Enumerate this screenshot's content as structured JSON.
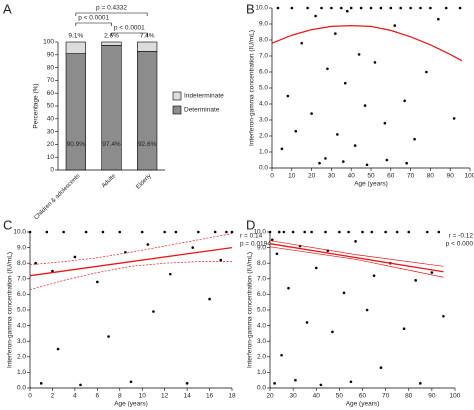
{
  "chart_data": [
    {
      "type": "bar",
      "label": "A",
      "ylabel": "Percentage (%)",
      "categories": [
        "Children & adolescents",
        "Adults",
        "Elderly"
      ],
      "series": [
        {
          "name": "Determinate",
          "color": "#8c8c8c",
          "values": [
            90.9,
            97.4,
            92.6
          ],
          "value_labels": [
            "90.9%",
            "97.4%",
            "92.6%"
          ]
        },
        {
          "name": "Indeterminate",
          "color": "#dcdcdc",
          "values": [
            9.1,
            2.6,
            7.4
          ],
          "value_labels": [
            "9.1%",
            "2.6%",
            "7.4%"
          ]
        }
      ],
      "stacked": true,
      "legend": "right",
      "ylim": [
        0,
        100
      ],
      "yticks": [
        0,
        10,
        20,
        30,
        40,
        50,
        60,
        70,
        80,
        90,
        100
      ],
      "comparisons": [
        {
          "label": "p = 0.4332",
          "groups": [
            0,
            2
          ]
        },
        {
          "label": "p < 0.0001",
          "groups": [
            0,
            1
          ]
        },
        {
          "label": "p < 0.0001",
          "groups": [
            1,
            2
          ]
        }
      ]
    },
    {
      "type": "scatter",
      "label": "B",
      "xlabel": "Age (years)",
      "ylabel": "Interferon-gamma concentration (IU/mL)",
      "xlim": [
        0,
        100
      ],
      "xticks": [
        0,
        10,
        20,
        30,
        40,
        50,
        60,
        70,
        80,
        90,
        100
      ],
      "ylim": [
        0,
        10
      ],
      "yticks": [
        {
          "value": 0,
          "label": "0.0"
        },
        {
          "value": 1,
          "label": "1.0"
        },
        {
          "value": 2,
          "label": "2.0"
        },
        {
          "value": 3,
          "label": "3.0"
        },
        {
          "value": 4,
          "label": "4.0"
        },
        {
          "value": 5,
          "label": "5.0"
        },
        {
          "value": 6,
          "label": "6.0"
        },
        {
          "value": 7,
          "label": "7.0"
        },
        {
          "value": 8,
          "label": "8.0"
        },
        {
          "value": 9,
          "label": "9.0"
        },
        {
          "value": 10,
          "label": "10.0"
        }
      ],
      "series": [
        {
          "type": "scatter",
          "color": "#000000",
          "x": [
            3,
            5,
            8,
            10,
            12,
            15,
            18,
            20,
            22,
            25,
            27,
            28,
            30,
            32,
            33,
            35,
            37,
            38,
            40,
            42,
            44,
            45,
            47,
            50,
            52,
            55,
            57,
            60,
            62,
            65,
            67,
            70,
            72,
            75,
            78,
            80,
            84,
            88,
            92,
            95,
            24,
            36,
            48,
            58,
            68
          ],
          "values": [
            10,
            1.2,
            4.5,
            10,
            2.3,
            7.8,
            10,
            3.4,
            9.5,
            10,
            0.6,
            6.2,
            10,
            8.4,
            2.1,
            10,
            5.3,
            9.8,
            10,
            1.4,
            7.1,
            10,
            3.9,
            10,
            6.6,
            10,
            2.8,
            10,
            8.9,
            10,
            4.2,
            10,
            1.8,
            10,
            6.0,
            10,
            9.3,
            10,
            3.1,
            10,
            0.3,
            0.4,
            0.2,
            0.5,
            0.3
          ]
        },
        {
          "type": "line",
          "color": "#e31a1c",
          "style": "solid",
          "x": [
            0,
            10,
            20,
            30,
            40,
            50,
            60,
            70,
            80,
            90,
            96
          ],
          "values": [
            7.8,
            8.3,
            8.65,
            8.85,
            8.9,
            8.85,
            8.6,
            8.2,
            7.7,
            7.1,
            6.7
          ]
        }
      ]
    },
    {
      "type": "scatter",
      "label": "C",
      "xlabel": "Age (years)",
      "ylabel": "Interferon-gamma concentration (IU/mL)",
      "xlim": [
        0,
        18
      ],
      "xticks": [
        0,
        2,
        4,
        6,
        8,
        10,
        12,
        14,
        16,
        18
      ],
      "ylim": [
        0,
        10
      ],
      "yticks": [
        {
          "value": 0,
          "label": "0.0"
        },
        {
          "value": 1,
          "label": "1.0"
        },
        {
          "value": 2,
          "label": "2.0"
        },
        {
          "value": 3,
          "label": "3.0"
        },
        {
          "value": 4,
          "label": "4.0"
        },
        {
          "value": 5,
          "label": "5.0"
        },
        {
          "value": 6,
          "label": "6.0"
        },
        {
          "value": 7,
          "label": "7.0"
        },
        {
          "value": 8,
          "label": "8.0"
        },
        {
          "value": 9,
          "label": "9.0"
        },
        {
          "value": 10,
          "label": "10.0"
        }
      ],
      "annotations": [
        "r = 0.14",
        "p = 0.0194"
      ],
      "series": [
        {
          "type": "scatter",
          "color": "#000000",
          "x": [
            0,
            0.5,
            1,
            1.5,
            2,
            2.5,
            3,
            4,
            4.5,
            5,
            6,
            6.5,
            7,
            8,
            8.5,
            9,
            10,
            10.5,
            11,
            12,
            12.5,
            13,
            14,
            14.5,
            15,
            16,
            16.5,
            17,
            17.5,
            18
          ],
          "values": [
            10,
            8.0,
            0.3,
            10,
            7.5,
            2.5,
            10,
            8.4,
            0.2,
            10,
            6.8,
            10,
            3.3,
            10,
            8.7,
            0.4,
            10,
            9.2,
            4.9,
            10,
            7.3,
            10,
            0.3,
            9.0,
            10,
            5.7,
            10,
            8.2,
            10,
            10
          ]
        },
        {
          "type": "line",
          "color": "#e31a1c",
          "style": "solid",
          "x": [
            0,
            18
          ],
          "values": [
            7.2,
            9.0
          ]
        },
        {
          "type": "line",
          "color": "#e31a1c",
          "style": "dashed",
          "x": [
            0,
            3,
            6,
            9,
            12,
            15,
            18
          ],
          "values": [
            7.9,
            8.1,
            8.35,
            8.7,
            9.1,
            9.5,
            9.9
          ]
        },
        {
          "type": "line",
          "color": "#e31a1c",
          "style": "dashed",
          "x": [
            0,
            3,
            6,
            9,
            12,
            15,
            18
          ],
          "values": [
            6.3,
            6.9,
            7.4,
            7.8,
            8.0,
            8.1,
            8.1
          ]
        }
      ]
    },
    {
      "type": "scatter",
      "label": "D",
      "xlabel": "Age (years)",
      "ylabel": "Interferon-gamma concentration (IU/mL)",
      "xlim": [
        20,
        100
      ],
      "xticks": [
        20,
        30,
        40,
        50,
        60,
        70,
        80,
        90,
        100
      ],
      "ylim": [
        0,
        10
      ],
      "yticks": [
        {
          "value": 0,
          "label": "0.0"
        },
        {
          "value": 1,
          "label": "1.0"
        },
        {
          "value": 2,
          "label": "2.0"
        },
        {
          "value": 3,
          "label": "3.0"
        },
        {
          "value": 4,
          "label": "4.0"
        },
        {
          "value": 5,
          "label": "5.0"
        },
        {
          "value": 6,
          "label": "6.0"
        },
        {
          "value": 7,
          "label": "7.0"
        },
        {
          "value": 8,
          "label": "8.0"
        },
        {
          "value": 9,
          "label": "9.0"
        },
        {
          "value": 10,
          "label": "10.0"
        }
      ],
      "annotations": [
        "r = -0.12",
        "p < 0.000"
      ],
      "series": [
        {
          "type": "scatter",
          "color": "#000000",
          "x": [
            20,
            21,
            22,
            23,
            24,
            25,
            26,
            28,
            30,
            31,
            33,
            35,
            36,
            38,
            40,
            42,
            44,
            45,
            47,
            50,
            52,
            54,
            55,
            57,
            60,
            62,
            64,
            65,
            68,
            70,
            72,
            75,
            78,
            80,
            83,
            85,
            88,
            90,
            93,
            95
          ],
          "values": [
            10,
            9.5,
            0.3,
            8.6,
            10,
            2.1,
            10,
            6.4,
            10,
            0.5,
            9.1,
            10,
            4.2,
            10,
            7.7,
            0.2,
            10,
            8.8,
            3.6,
            10,
            6.1,
            10,
            0.4,
            9.4,
            10,
            5.0,
            10,
            7.2,
            1.3,
            10,
            8.0,
            10,
            3.8,
            10,
            6.9,
            0.3,
            10,
            7.4,
            10,
            4.6
          ]
        },
        {
          "type": "line",
          "color": "#e31a1c",
          "style": "solid",
          "x": [
            20,
            95
          ],
          "values": [
            9.25,
            7.45
          ]
        },
        {
          "type": "line",
          "color": "#e31a1c",
          "style": "solid-thin",
          "x": [
            20,
            57,
            95
          ],
          "values": [
            9.45,
            8.55,
            7.8
          ]
        },
        {
          "type": "line",
          "color": "#e31a1c",
          "style": "solid-thin",
          "x": [
            20,
            57,
            95
          ],
          "values": [
            9.05,
            8.25,
            7.1
          ]
        }
      ]
    }
  ]
}
